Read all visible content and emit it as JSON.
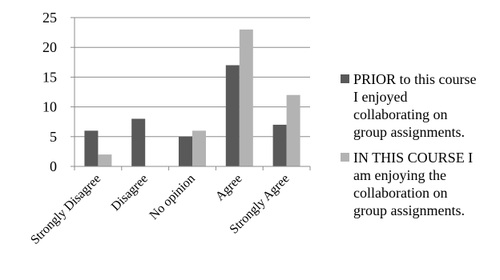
{
  "chart_data": {
    "type": "bar",
    "categories": [
      "Strongly Disagree",
      "Disagree",
      "No opinion",
      "Agree",
      "Strongly Agree"
    ],
    "series": [
      {
        "name": "PRIOR to this course I enjoyed collaborating on group assignments.",
        "legend_lines": [
          "PRIOR to this course",
          "I enjoyed",
          "collaborating on",
          "group assignments."
        ],
        "values": [
          6,
          8,
          5,
          17,
          7
        ],
        "color": "#595959"
      },
      {
        "name": "IN THIS COURSE I am enjoying the collaboration on group assignments.",
        "legend_lines": [
          "IN THIS COURSE I",
          "am enjoying the",
          "collaboration on",
          "group assignments."
        ],
        "values": [
          2,
          0,
          6,
          23,
          12
        ],
        "color": "#b3b3b3"
      }
    ],
    "title": "",
    "xlabel": "",
    "ylabel": "",
    "ylim": [
      0,
      25
    ],
    "yticks": [
      "0",
      "5",
      "10",
      "15",
      "20",
      "25"
    ],
    "grid": true,
    "legend_position": "right"
  }
}
